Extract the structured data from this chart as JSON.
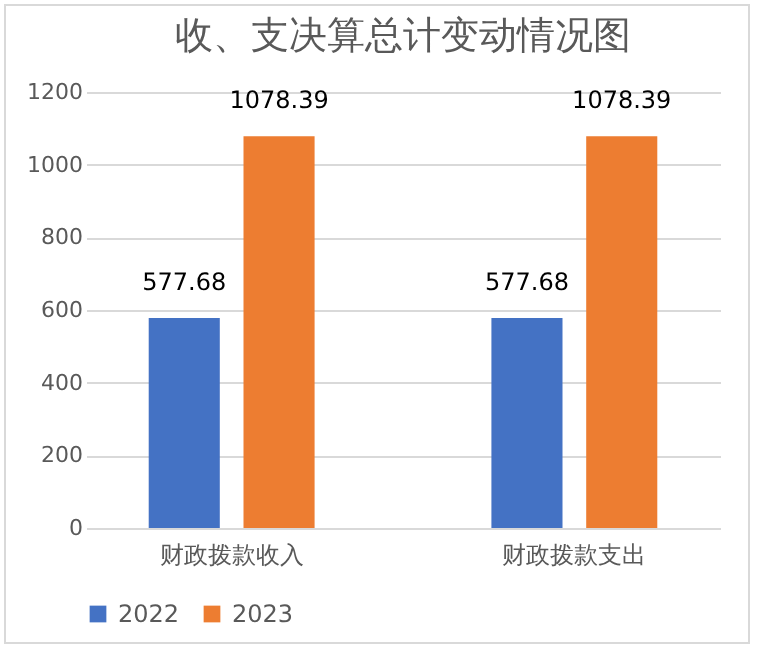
{
  "chart_data": {
    "type": "bar",
    "title": "收、支决算总计变动情况图",
    "categories": [
      "财政拨款收入",
      "财政拨款支出"
    ],
    "series": [
      {
        "name": "2022",
        "color": "#4472c4",
        "values": [
          577.68,
          577.68
        ]
      },
      {
        "name": "2023",
        "color": "#ed7d31",
        "values": [
          1078.39,
          1078.39
        ]
      }
    ],
    "ylim": [
      0,
      1200
    ],
    "yticks": [
      0,
      200,
      400,
      600,
      800,
      1000,
      1200
    ],
    "grid": "y",
    "legend": "bottom",
    "data_labels": true
  }
}
